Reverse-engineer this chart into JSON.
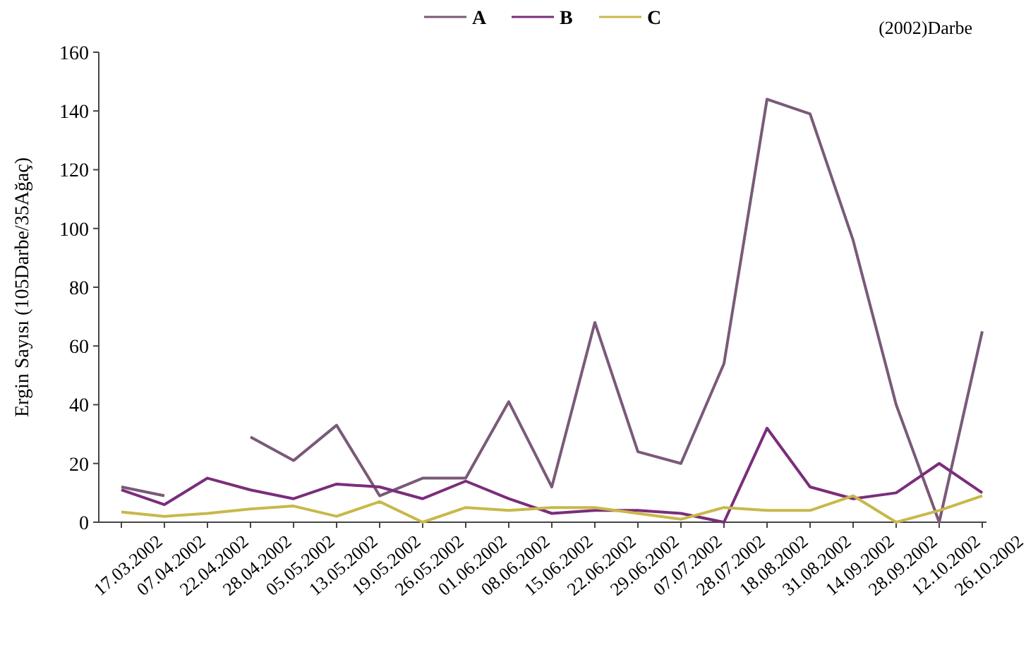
{
  "chart_data": {
    "type": "line",
    "ylabel": "Ergin Sayısı (105Darbe/35Ağaç)",
    "annotations": [
      "(2002)Darbe"
    ],
    "categories": [
      "17.03.2002",
      "07.04.2002",
      "22.04.2002",
      "28.04.2002",
      "05.05.2002",
      "13.05.2002",
      "19.05.2002",
      "26.05.2002",
      "01.06.2002",
      "08.06.2002",
      "15.06.2002",
      "22.06.2002",
      "29.06.2002",
      "07.07.2002",
      "28.07.2002",
      "18.08.2002",
      "31.08.2002",
      "14.09.2002",
      "28.09.2002",
      "12.10.2002",
      "26.10.2002"
    ],
    "series": [
      {
        "name": "A",
        "color": "#7a5a78",
        "values": [
          12,
          9,
          null,
          29,
          21,
          33,
          9,
          15,
          15,
          41,
          12,
          68,
          24,
          20,
          54,
          144,
          139,
          96,
          40,
          0,
          65
        ]
      },
      {
        "name": "B",
        "color": "#7b2d7b",
        "values": [
          11,
          6,
          15,
          11,
          8,
          13,
          12,
          8,
          14,
          8,
          3,
          4,
          4,
          3,
          0,
          32,
          12,
          8,
          10,
          20,
          10
        ]
      },
      {
        "name": "C",
        "color": "#c8b84a",
        "values": [
          3.5,
          2,
          3,
          4.5,
          5.5,
          2,
          7,
          0,
          5,
          4,
          5,
          5,
          3,
          1,
          5,
          4,
          4,
          9,
          0,
          4,
          9
        ]
      }
    ],
    "ylim": [
      0,
      160
    ],
    "yticks": [
      0,
      20,
      40,
      60,
      80,
      100,
      120,
      140,
      160
    ],
    "grid": false,
    "legend": "top",
    "marker": "none",
    "line_style": "solid"
  }
}
